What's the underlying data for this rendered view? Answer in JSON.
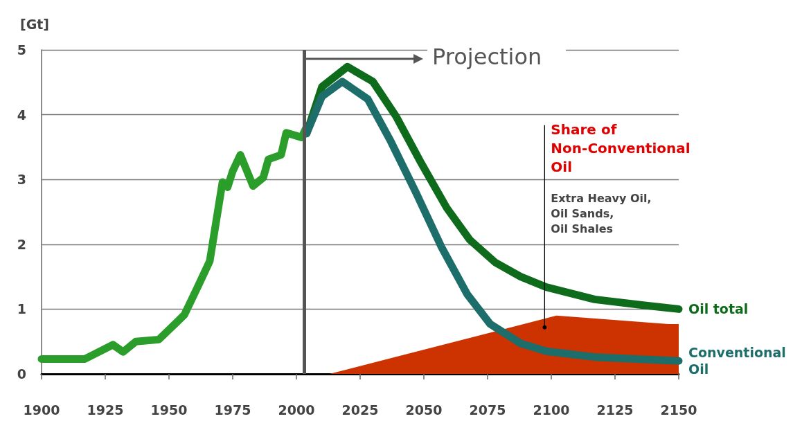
{
  "chart_data": {
    "type": "line",
    "ylabel": "[Gt]",
    "xlim": [
      1900,
      2150
    ],
    "xticks": [
      1900,
      1925,
      1950,
      1975,
      2000,
      2025,
      2050,
      2075,
      2100,
      2125,
      2150
    ],
    "ylim": [
      0,
      5
    ],
    "yticks": [
      0,
      1,
      2,
      3,
      4,
      5
    ],
    "grid": "y",
    "legend": false,
    "marker": "none",
    "line_style": "solid",
    "series": [
      {
        "color": "#2a9d2a",
        "x": [
          1900,
          1917,
          1928,
          1932,
          1937,
          1946,
          1956,
          1961,
          1966,
          1971,
          1973,
          1975,
          1978,
          1983,
          1987,
          1989,
          1994,
          1996,
          2002,
          2004
        ],
        "values": [
          0.23,
          0.23,
          0.45,
          0.34,
          0.5,
          0.53,
          0.91,
          1.32,
          1.74,
          2.96,
          2.88,
          3.13,
          3.38,
          2.9,
          3.03,
          3.31,
          3.38,
          3.72,
          3.65,
          3.81
        ]
      },
      {
        "name": "Oil total",
        "color": "#0f6b1c",
        "x": [
          2004,
          2010,
          2020,
          2030,
          2039,
          2049,
          2059,
          2068,
          2078,
          2088,
          2098,
          2117,
          2136,
          2150
        ],
        "values": [
          3.71,
          4.43,
          4.74,
          4.51,
          3.98,
          3.25,
          2.56,
          2.07,
          1.72,
          1.5,
          1.34,
          1.15,
          1.06,
          1.0
        ]
      },
      {
        "name": "Conventional Oil",
        "color": "#1d6d6a",
        "x": [
          2004,
          2010,
          2018,
          2028,
          2037,
          2047,
          2057,
          2067,
          2076,
          2088,
          2098,
          2117,
          2150
        ],
        "values": [
          3.71,
          4.28,
          4.51,
          4.24,
          3.59,
          2.79,
          1.95,
          1.23,
          0.77,
          0.47,
          0.35,
          0.26,
          0.2
        ]
      },
      {
        "name": "Share of Non-Conventional Oil",
        "type": "area",
        "color": "#cc3300",
        "x": [
          2013,
          2102,
          2146,
          2150
        ],
        "values": [
          0,
          0.9,
          0.77,
          0.77
        ]
      }
    ],
    "ref_lines": [
      {
        "axis": "x",
        "value": 2003,
        "label": "Projection",
        "color": "#555555"
      }
    ],
    "annotations": [
      "Extra Heavy Oil, Oil Sands, Oil Shales"
    ]
  }
}
